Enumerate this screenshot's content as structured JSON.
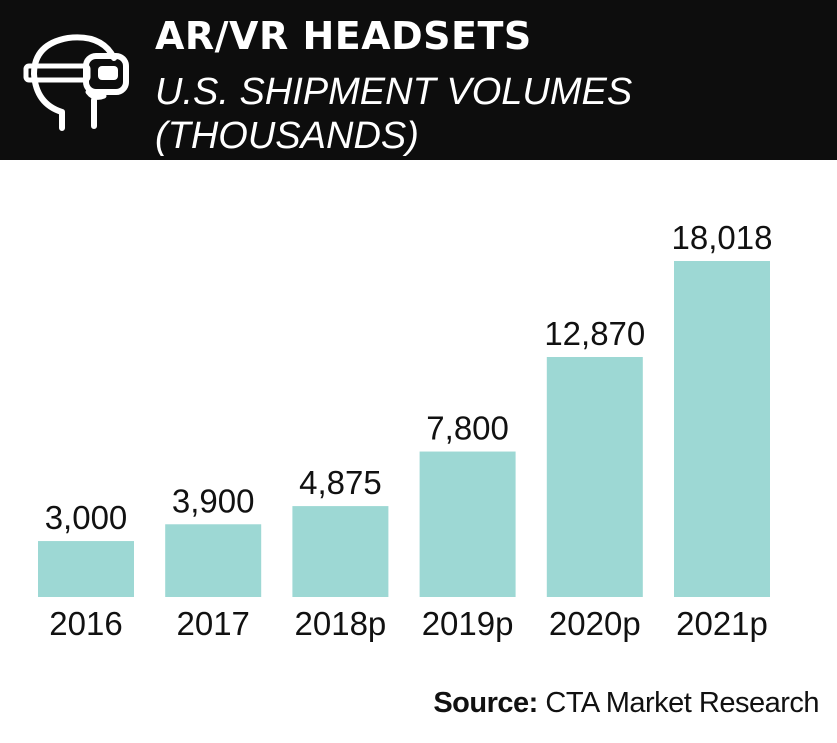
{
  "header": {
    "title": "AR/VR HEADSETS",
    "subtitle": "U.S. SHIPMENT VOLUMES (THOUSANDS)",
    "icon": "vr-headset-icon"
  },
  "footer": {
    "source_label": "Source:",
    "source_value": "CTA Market Research"
  },
  "colors": {
    "header_bg": "#0d0d0d",
    "bar": "#9dd8d4",
    "text": "#111111"
  },
  "chart_data": {
    "type": "bar",
    "categories": [
      "2016",
      "2017",
      "2018p",
      "2019p",
      "2020p",
      "2021p"
    ],
    "values": [
      3000,
      3900,
      4875,
      7800,
      12870,
      18018
    ],
    "value_labels": [
      "3,000",
      "3,900",
      "4,875",
      "7,800",
      "12,870",
      "18,018"
    ],
    "title": "AR/VR HEADSETS",
    "subtitle": "U.S. SHIPMENT VOLUMES (THOUSANDS)",
    "xlabel": "",
    "ylabel": "",
    "ylim": [
      0,
      18018
    ],
    "grid": false,
    "legend": "none"
  }
}
